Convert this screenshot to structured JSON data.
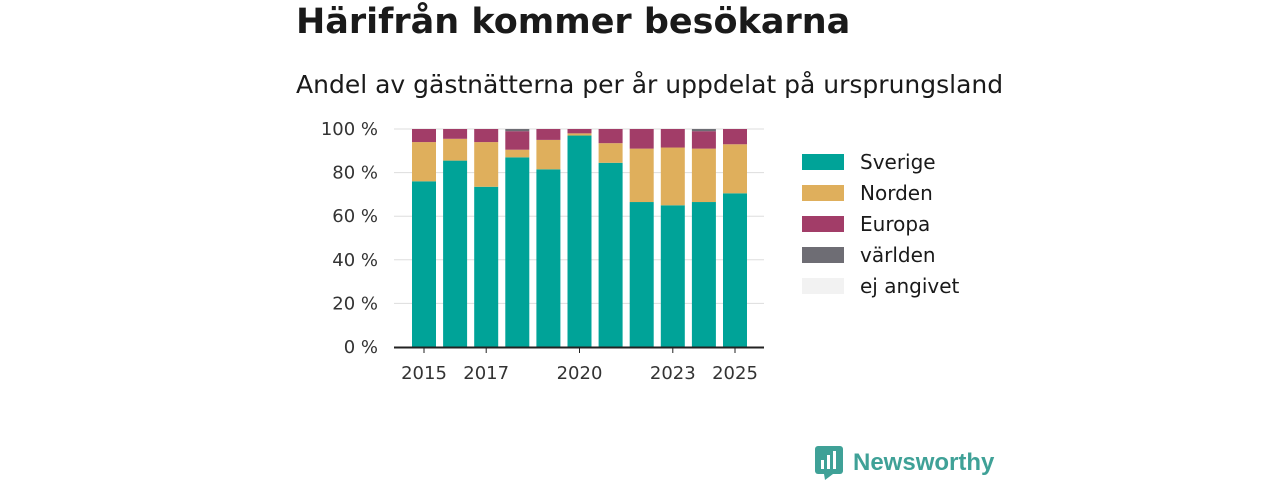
{
  "title": "Härifrån kommer besökarna",
  "subtitle": "Andel av gästnätterna per år uppdelat på ursprungsland",
  "brand": {
    "name": "Newsworthy",
    "icon": "newsworthy-logo-icon",
    "color": "#3fa197"
  },
  "legend": [
    {
      "label": "Sverige",
      "color": "#00a398"
    },
    {
      "label": "Norden",
      "color": "#dfaf5c"
    },
    {
      "label": "Europa",
      "color": "#a23d68"
    },
    {
      "label": "världen",
      "color": "#6e6d74"
    },
    {
      "label": "ej angivet",
      "color": "#f2f2f2"
    }
  ],
  "chart_data": {
    "type": "bar",
    "stacked": true,
    "categories": [
      "2015",
      "2016",
      "2017",
      "2018",
      "2019",
      "2020",
      "2021",
      "2022",
      "2023",
      "2024",
      "2025"
    ],
    "x_tick_labels": [
      "2015",
      "",
      "2017",
      "",
      "",
      "2020",
      "",
      "",
      "2023",
      "",
      "2025"
    ],
    "y_tick_labels": [
      "0 %",
      "20 %",
      "40 %",
      "60 %",
      "80 %",
      "100 %"
    ],
    "ylim": [
      0,
      100
    ],
    "grid": true,
    "legend_position": "right",
    "series": [
      {
        "name": "Sverige",
        "color": "#00a398",
        "values": [
          76,
          85.5,
          73.5,
          87,
          81.5,
          97,
          84.5,
          66.5,
          65,
          66.5,
          70.5
        ]
      },
      {
        "name": "Norden",
        "color": "#dfaf5c",
        "values": [
          18,
          10,
          20.5,
          3.5,
          13.5,
          1,
          9,
          24.5,
          26.5,
          24.5,
          22.5
        ]
      },
      {
        "name": "Europa",
        "color": "#a23d68",
        "values": [
          6,
          4.5,
          6,
          8.5,
          5,
          2,
          6.5,
          9,
          8.5,
          8,
          7
        ]
      },
      {
        "name": "världen",
        "color": "#6e6d74",
        "values": [
          0,
          0,
          0,
          1,
          0,
          0,
          0,
          0,
          0,
          1,
          0
        ]
      },
      {
        "name": "ej angivet",
        "color": "#f2f2f2",
        "values": [
          0,
          0,
          0,
          0,
          0,
          0,
          0,
          0,
          0,
          0,
          0
        ]
      }
    ]
  }
}
